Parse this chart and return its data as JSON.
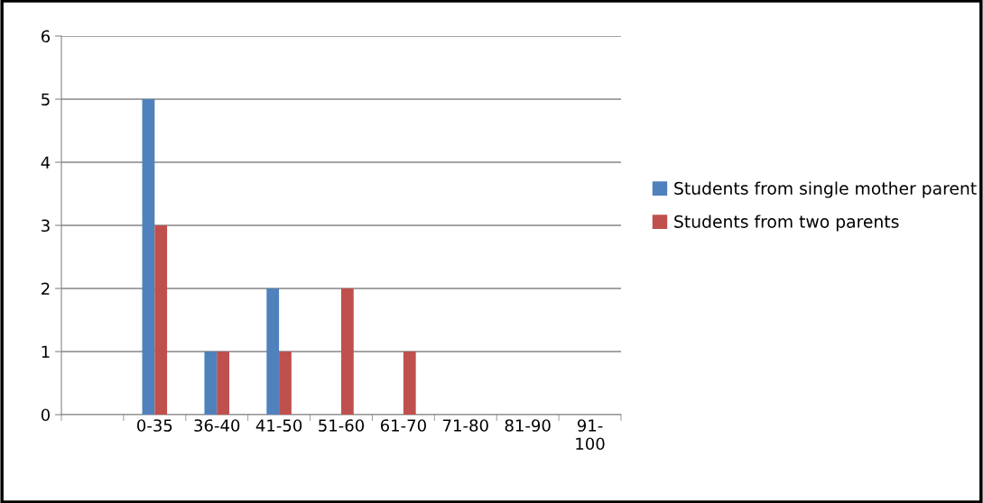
{
  "chart_data": {
    "type": "bar",
    "categories": [
      null,
      "0-35",
      "36-40",
      "41-50",
      "51-60",
      "61-70",
      "71-80",
      "81-90",
      "91-\n100"
    ],
    "series": [
      {
        "name": "Students from single mother parent",
        "color": "#4f81bd",
        "values": [
          null,
          5,
          1,
          2,
          0,
          0,
          0,
          0,
          0
        ]
      },
      {
        "name": "Students from two parents",
        "color": "#c0504d",
        "values": [
          null,
          3,
          1,
          1,
          2,
          1,
          0,
          0,
          0
        ]
      }
    ],
    "ylim": [
      0,
      6
    ],
    "yticks": [
      0,
      1,
      2,
      3,
      4,
      5,
      6
    ],
    "grid": "y",
    "legend": "right"
  }
}
